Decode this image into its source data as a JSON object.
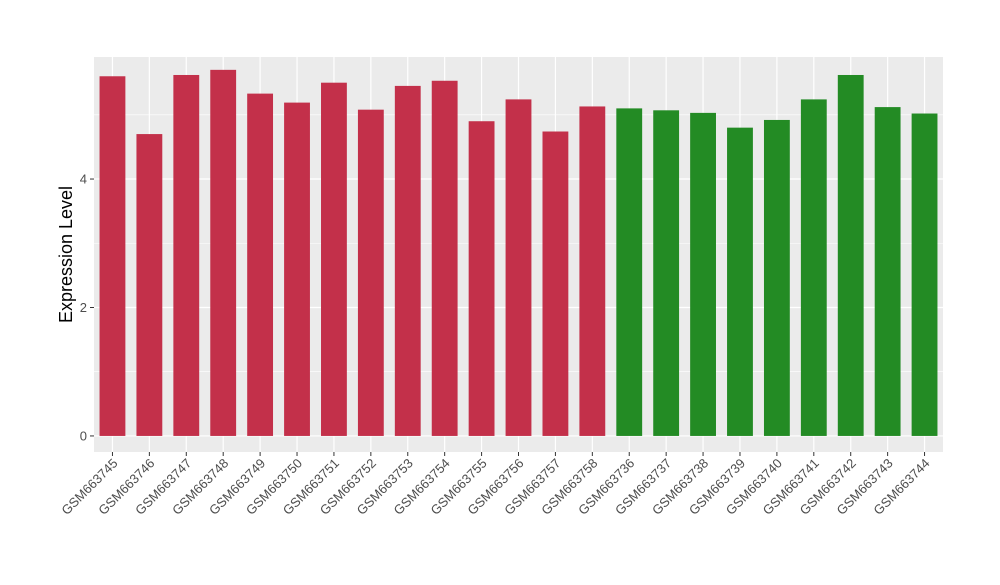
{
  "chart_data": {
    "type": "bar",
    "title": "",
    "xlabel": "",
    "ylabel": "Expression Level",
    "ylim": [
      -0.25,
      5.9
    ],
    "yticks": [
      0,
      2,
      4
    ],
    "grid": true,
    "legend": "none",
    "colors": {
      "group_a": "#C3304A",
      "group_b": "#238B24",
      "panel": "#EBEBEB",
      "gridline": "#FFFFFF"
    },
    "categories": [
      "GSM663745",
      "GSM663746",
      "GSM663747",
      "GSM663748",
      "GSM663749",
      "GSM663750",
      "GSM663751",
      "GSM663752",
      "GSM663753",
      "GSM663754",
      "GSM663755",
      "GSM663756",
      "GSM663757",
      "GSM663758",
      "GSM663736",
      "GSM663737",
      "GSM663738",
      "GSM663739",
      "GSM663740",
      "GSM663741",
      "GSM663742",
      "GSM663743",
      "GSM663744"
    ],
    "values": [
      5.6,
      4.7,
      5.62,
      5.7,
      5.33,
      5.19,
      5.5,
      5.08,
      5.45,
      5.53,
      4.9,
      5.24,
      4.74,
      5.13,
      5.1,
      5.07,
      5.03,
      4.8,
      4.92,
      5.24,
      5.62,
      5.12,
      5.02
    ],
    "groups": [
      "a",
      "a",
      "a",
      "a",
      "a",
      "a",
      "a",
      "a",
      "a",
      "a",
      "a",
      "a",
      "a",
      "a",
      "b",
      "b",
      "b",
      "b",
      "b",
      "b",
      "b",
      "b",
      "b"
    ]
  }
}
